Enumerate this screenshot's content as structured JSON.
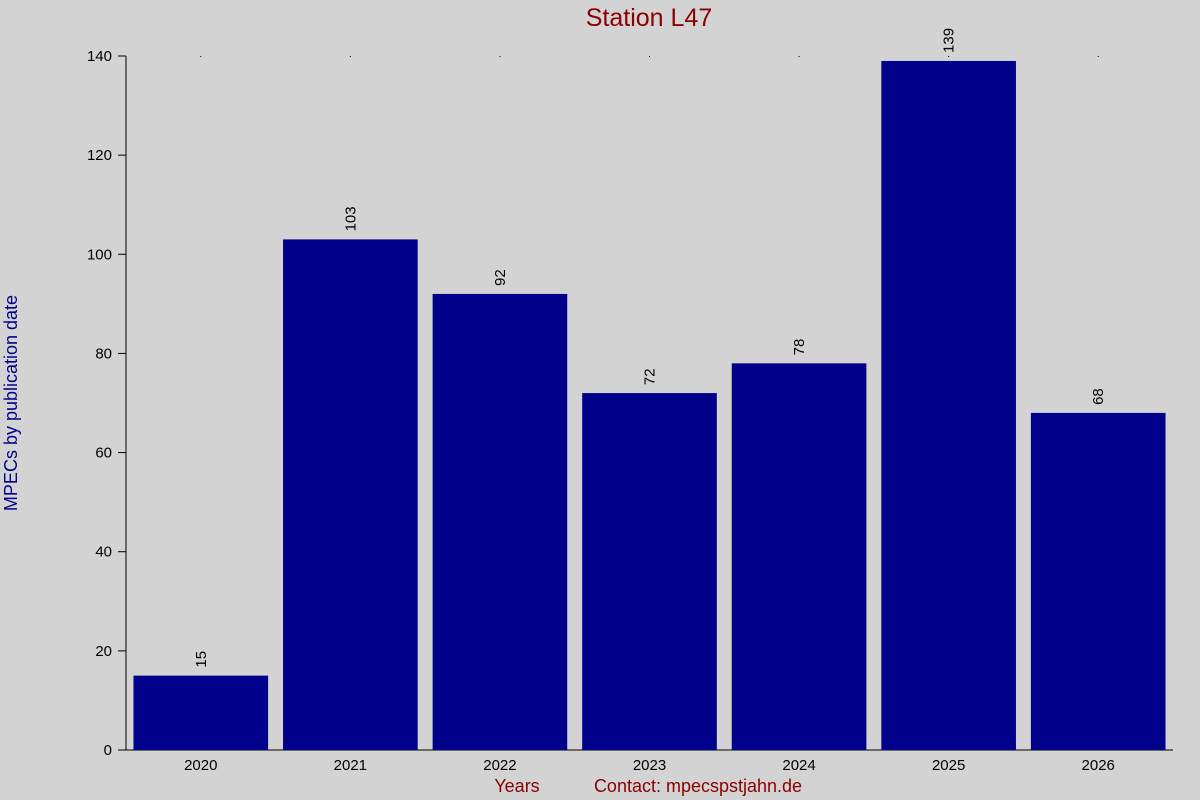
{
  "chart_data": {
    "type": "bar",
    "title": "Station L47",
    "xlabel": "Years",
    "note": "Contact: mpecspstjahn.de",
    "ylabel": "MPECs by publication date",
    "categories": [
      "2020",
      "2021",
      "2022",
      "2023",
      "2024",
      "2025",
      "2026"
    ],
    "values": [
      15,
      103,
      92,
      72,
      78,
      139,
      68
    ],
    "color": "#00008b",
    "ylim": [
      0,
      140
    ],
    "yticks": [
      0,
      20,
      40,
      60,
      80,
      100,
      120,
      140
    ],
    "grid": false
  }
}
